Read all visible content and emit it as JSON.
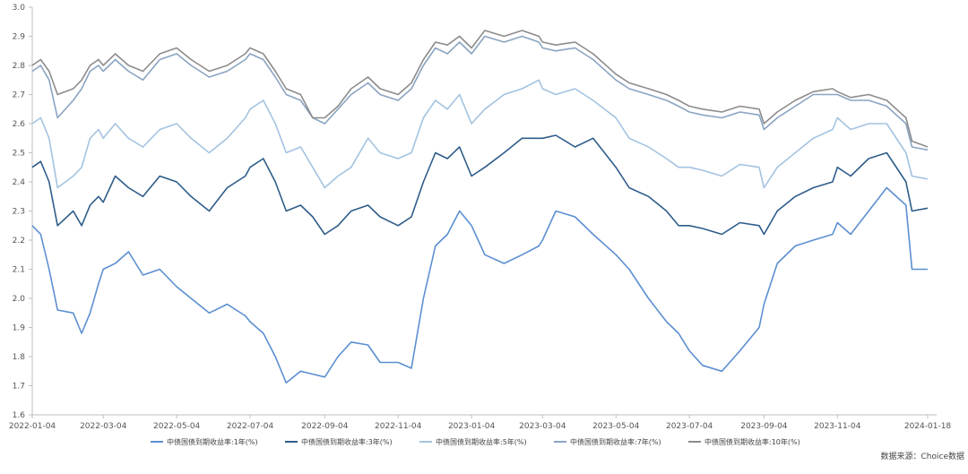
{
  "chart_data": {
    "type": "line",
    "y_ticks": [
      1.6,
      1.7,
      1.8,
      1.9,
      2.0,
      2.1,
      2.2,
      2.3,
      2.4,
      2.5,
      2.6,
      2.7,
      2.8,
      2.9,
      3.0
    ],
    "y_tick_labels": [
      "1.6",
      "1.7",
      "1.8",
      "1.9",
      "2.0",
      "2.1",
      "2.2",
      "2.3",
      "2.4",
      "2.5",
      "2.6",
      "2.7",
      "2.8",
      "2.9",
      "3.0"
    ],
    "ylim": [
      1.6,
      3.0
    ],
    "x_ticks": [
      "2022-01-04",
      "2022-03-04",
      "2022-05-04",
      "2022-07-04",
      "2022-09-04",
      "2022-11-04",
      "2023-01-04",
      "2023-03-04",
      "2023-05-04",
      "2023-07-04",
      "2023-09-04",
      "2023-11-04",
      "2024-01-18"
    ],
    "xlim": [
      "2022-01-04",
      "2024-01-18"
    ],
    "grid": false,
    "legend_position": "bottom",
    "source_note": "数据来源：Choice数据",
    "series": [
      {
        "name": "中债国债到期收益率:1年(%)",
        "color": "#5b8fd1",
        "x": [
          "2022-01-04",
          "2022-01-11",
          "2022-01-18",
          "2022-01-25",
          "2022-02-07",
          "2022-02-14",
          "2022-02-21",
          "2022-02-28",
          "2022-03-04",
          "2022-03-14",
          "2022-03-25",
          "2022-04-06",
          "2022-04-20",
          "2022-05-04",
          "2022-05-16",
          "2022-05-31",
          "2022-06-15",
          "2022-06-30",
          "2022-07-04",
          "2022-07-15",
          "2022-07-25",
          "2022-08-03",
          "2022-08-15",
          "2022-08-25",
          "2022-09-04",
          "2022-09-15",
          "2022-09-26",
          "2022-10-10",
          "2022-10-20",
          "2022-11-04",
          "2022-11-15",
          "2022-11-25",
          "2022-12-05",
          "2022-12-15",
          "2022-12-25",
          "2023-01-04",
          "2023-01-15",
          "2023-01-31",
          "2023-02-15",
          "2023-03-01",
          "2023-03-04",
          "2023-03-15",
          "2023-03-31",
          "2023-04-15",
          "2023-05-04",
          "2023-05-15",
          "2023-05-31",
          "2023-06-15",
          "2023-06-25",
          "2023-07-04",
          "2023-07-15",
          "2023-07-31",
          "2023-08-15",
          "2023-08-31",
          "2023-09-04",
          "2023-09-15",
          "2023-09-30",
          "2023-10-15",
          "2023-10-31",
          "2023-11-04",
          "2023-11-15",
          "2023-11-30",
          "2023-12-15",
          "2023-12-31",
          "2024-01-05",
          "2024-01-18"
        ],
        "values": [
          2.25,
          2.22,
          2.1,
          1.96,
          1.95,
          1.88,
          1.95,
          2.05,
          2.1,
          2.12,
          2.16,
          2.08,
          2.1,
          2.04,
          2.0,
          1.95,
          1.98,
          1.94,
          1.92,
          1.88,
          1.8,
          1.71,
          1.75,
          1.74,
          1.73,
          1.8,
          1.85,
          1.84,
          1.78,
          1.78,
          1.76,
          2.0,
          2.18,
          2.22,
          2.3,
          2.25,
          2.15,
          2.12,
          2.15,
          2.18,
          2.2,
          2.3,
          2.28,
          2.22,
          2.15,
          2.1,
          2.0,
          1.92,
          1.88,
          1.82,
          1.77,
          1.75,
          1.82,
          1.9,
          1.98,
          2.12,
          2.18,
          2.2,
          2.22,
          2.26,
          2.22,
          2.3,
          2.38,
          2.32,
          2.1,
          2.1
        ]
      },
      {
        "name": "中债国债到期收益率:3年(%)",
        "color": "#2e5c8a",
        "x": [
          "2022-01-04",
          "2022-01-11",
          "2022-01-18",
          "2022-01-25",
          "2022-02-07",
          "2022-02-14",
          "2022-02-21",
          "2022-02-28",
          "2022-03-04",
          "2022-03-14",
          "2022-03-25",
          "2022-04-06",
          "2022-04-20",
          "2022-05-04",
          "2022-05-16",
          "2022-05-31",
          "2022-06-15",
          "2022-06-30",
          "2022-07-04",
          "2022-07-15",
          "2022-07-25",
          "2022-08-03",
          "2022-08-15",
          "2022-08-25",
          "2022-09-04",
          "2022-09-15",
          "2022-09-26",
          "2022-10-10",
          "2022-10-20",
          "2022-11-04",
          "2022-11-15",
          "2022-11-25",
          "2022-12-05",
          "2022-12-15",
          "2022-12-25",
          "2023-01-04",
          "2023-01-15",
          "2023-01-31",
          "2023-02-15",
          "2023-03-01",
          "2023-03-04",
          "2023-03-15",
          "2023-03-31",
          "2023-04-15",
          "2023-05-04",
          "2023-05-15",
          "2023-05-31",
          "2023-06-15",
          "2023-06-25",
          "2023-07-04",
          "2023-07-15",
          "2023-07-31",
          "2023-08-15",
          "2023-08-31",
          "2023-09-04",
          "2023-09-15",
          "2023-09-30",
          "2023-10-15",
          "2023-10-31",
          "2023-11-04",
          "2023-11-15",
          "2023-11-30",
          "2023-12-15",
          "2023-12-31",
          "2024-01-05",
          "2024-01-18"
        ],
        "values": [
          2.45,
          2.47,
          2.4,
          2.25,
          2.3,
          2.25,
          2.32,
          2.35,
          2.33,
          2.42,
          2.38,
          2.35,
          2.42,
          2.4,
          2.35,
          2.3,
          2.38,
          2.42,
          2.45,
          2.48,
          2.4,
          2.3,
          2.32,
          2.28,
          2.22,
          2.25,
          2.3,
          2.32,
          2.28,
          2.25,
          2.28,
          2.4,
          2.5,
          2.48,
          2.52,
          2.42,
          2.45,
          2.5,
          2.55,
          2.55,
          2.55,
          2.56,
          2.52,
          2.55,
          2.45,
          2.38,
          2.35,
          2.3,
          2.25,
          2.25,
          2.24,
          2.22,
          2.26,
          2.25,
          2.22,
          2.3,
          2.35,
          2.38,
          2.4,
          2.45,
          2.42,
          2.48,
          2.5,
          2.4,
          2.3,
          2.31
        ]
      },
      {
        "name": "中债国债到期收益率:5年(%)",
        "color": "#a3c3e0",
        "x": [
          "2022-01-04",
          "2022-01-11",
          "2022-01-18",
          "2022-01-25",
          "2022-02-07",
          "2022-02-14",
          "2022-02-21",
          "2022-02-28",
          "2022-03-04",
          "2022-03-14",
          "2022-03-25",
          "2022-04-06",
          "2022-04-20",
          "2022-05-04",
          "2022-05-16",
          "2022-05-31",
          "2022-06-15",
          "2022-06-30",
          "2022-07-04",
          "2022-07-15",
          "2022-07-25",
          "2022-08-03",
          "2022-08-15",
          "2022-08-25",
          "2022-09-04",
          "2022-09-15",
          "2022-09-26",
          "2022-10-10",
          "2022-10-20",
          "2022-11-04",
          "2022-11-15",
          "2022-11-25",
          "2022-12-05",
          "2022-12-15",
          "2022-12-25",
          "2023-01-04",
          "2023-01-15",
          "2023-01-31",
          "2023-02-15",
          "2023-03-01",
          "2023-03-04",
          "2023-03-15",
          "2023-03-31",
          "2023-04-15",
          "2023-05-04",
          "2023-05-15",
          "2023-05-31",
          "2023-06-15",
          "2023-06-25",
          "2023-07-04",
          "2023-07-15",
          "2023-07-31",
          "2023-08-15",
          "2023-08-31",
          "2023-09-04",
          "2023-09-15",
          "2023-09-30",
          "2023-10-15",
          "2023-10-31",
          "2023-11-04",
          "2023-11-15",
          "2023-11-30",
          "2023-12-15",
          "2023-12-31",
          "2024-01-05",
          "2024-01-18"
        ],
        "values": [
          2.6,
          2.62,
          2.55,
          2.38,
          2.42,
          2.45,
          2.55,
          2.58,
          2.55,
          2.6,
          2.55,
          2.52,
          2.58,
          2.6,
          2.55,
          2.5,
          2.55,
          2.62,
          2.65,
          2.68,
          2.6,
          2.5,
          2.52,
          2.45,
          2.38,
          2.42,
          2.45,
          2.55,
          2.5,
          2.48,
          2.5,
          2.62,
          2.68,
          2.65,
          2.7,
          2.6,
          2.65,
          2.7,
          2.72,
          2.75,
          2.72,
          2.7,
          2.72,
          2.68,
          2.62,
          2.55,
          2.52,
          2.48,
          2.45,
          2.45,
          2.44,
          2.42,
          2.46,
          2.45,
          2.38,
          2.45,
          2.5,
          2.55,
          2.58,
          2.62,
          2.58,
          2.6,
          2.6,
          2.5,
          2.42,
          2.41
        ]
      },
      {
        "name": "中债国债到期收益率:7年(%)",
        "color": "#8aa4c2",
        "x": [
          "2022-01-04",
          "2022-01-11",
          "2022-01-18",
          "2022-01-25",
          "2022-02-07",
          "2022-02-14",
          "2022-02-21",
          "2022-02-28",
          "2022-03-04",
          "2022-03-14",
          "2022-03-25",
          "2022-04-06",
          "2022-04-20",
          "2022-05-04",
          "2022-05-16",
          "2022-05-31",
          "2022-06-15",
          "2022-06-30",
          "2022-07-04",
          "2022-07-15",
          "2022-07-25",
          "2022-08-03",
          "2022-08-15",
          "2022-08-25",
          "2022-09-04",
          "2022-09-15",
          "2022-09-26",
          "2022-10-10",
          "2022-10-20",
          "2022-11-04",
          "2022-11-15",
          "2022-11-25",
          "2022-12-05",
          "2022-12-15",
          "2022-12-25",
          "2023-01-04",
          "2023-01-15",
          "2023-01-31",
          "2023-02-15",
          "2023-03-01",
          "2023-03-04",
          "2023-03-15",
          "2023-03-31",
          "2023-04-15",
          "2023-05-04",
          "2023-05-15",
          "2023-05-31",
          "2023-06-15",
          "2023-06-25",
          "2023-07-04",
          "2023-07-15",
          "2023-07-31",
          "2023-08-15",
          "2023-08-31",
          "2023-09-04",
          "2023-09-15",
          "2023-09-30",
          "2023-10-15",
          "2023-10-31",
          "2023-11-04",
          "2023-11-15",
          "2023-11-30",
          "2023-12-15",
          "2023-12-31",
          "2024-01-05",
          "2024-01-18"
        ],
        "values": [
          2.78,
          2.8,
          2.75,
          2.62,
          2.68,
          2.72,
          2.78,
          2.8,
          2.78,
          2.82,
          2.78,
          2.75,
          2.82,
          2.84,
          2.8,
          2.76,
          2.78,
          2.82,
          2.84,
          2.82,
          2.76,
          2.7,
          2.68,
          2.62,
          2.6,
          2.65,
          2.7,
          2.74,
          2.7,
          2.68,
          2.72,
          2.8,
          2.86,
          2.84,
          2.88,
          2.84,
          2.9,
          2.88,
          2.9,
          2.88,
          2.86,
          2.85,
          2.86,
          2.82,
          2.75,
          2.72,
          2.7,
          2.68,
          2.66,
          2.64,
          2.63,
          2.62,
          2.64,
          2.63,
          2.58,
          2.62,
          2.66,
          2.7,
          2.7,
          2.7,
          2.68,
          2.68,
          2.66,
          2.6,
          2.52,
          2.51
        ]
      },
      {
        "name": "中债国债到期收益率:10年(%)",
        "color": "#8c8c8c",
        "x": [
          "2022-01-04",
          "2022-01-11",
          "2022-01-18",
          "2022-01-25",
          "2022-02-07",
          "2022-02-14",
          "2022-02-21",
          "2022-02-28",
          "2022-03-04",
          "2022-03-14",
          "2022-03-25",
          "2022-04-06",
          "2022-04-20",
          "2022-05-04",
          "2022-05-16",
          "2022-05-31",
          "2022-06-15",
          "2022-06-30",
          "2022-07-04",
          "2022-07-15",
          "2022-07-25",
          "2022-08-03",
          "2022-08-15",
          "2022-08-25",
          "2022-09-04",
          "2022-09-15",
          "2022-09-26",
          "2022-10-10",
          "2022-10-20",
          "2022-11-04",
          "2022-11-15",
          "2022-11-25",
          "2022-12-05",
          "2022-12-15",
          "2022-12-25",
          "2023-01-04",
          "2023-01-15",
          "2023-01-31",
          "2023-02-15",
          "2023-03-01",
          "2023-03-04",
          "2023-03-15",
          "2023-03-31",
          "2023-04-15",
          "2023-05-04",
          "2023-05-15",
          "2023-05-31",
          "2023-06-15",
          "2023-06-25",
          "2023-07-04",
          "2023-07-15",
          "2023-07-31",
          "2023-08-15",
          "2023-08-31",
          "2023-09-04",
          "2023-09-15",
          "2023-09-30",
          "2023-10-15",
          "2023-10-31",
          "2023-11-04",
          "2023-11-15",
          "2023-11-30",
          "2023-12-15",
          "2023-12-31",
          "2024-01-05",
          "2024-01-18"
        ],
        "values": [
          2.8,
          2.82,
          2.78,
          2.7,
          2.72,
          2.75,
          2.8,
          2.82,
          2.8,
          2.84,
          2.8,
          2.78,
          2.84,
          2.86,
          2.82,
          2.78,
          2.8,
          2.84,
          2.86,
          2.84,
          2.78,
          2.72,
          2.7,
          2.62,
          2.62,
          2.66,
          2.72,
          2.76,
          2.72,
          2.7,
          2.74,
          2.82,
          2.88,
          2.87,
          2.9,
          2.86,
          2.92,
          2.9,
          2.92,
          2.9,
          2.88,
          2.87,
          2.88,
          2.84,
          2.77,
          2.74,
          2.72,
          2.7,
          2.68,
          2.66,
          2.65,
          2.64,
          2.66,
          2.65,
          2.6,
          2.64,
          2.68,
          2.71,
          2.72,
          2.71,
          2.69,
          2.7,
          2.68,
          2.62,
          2.54,
          2.52
        ]
      }
    ]
  }
}
